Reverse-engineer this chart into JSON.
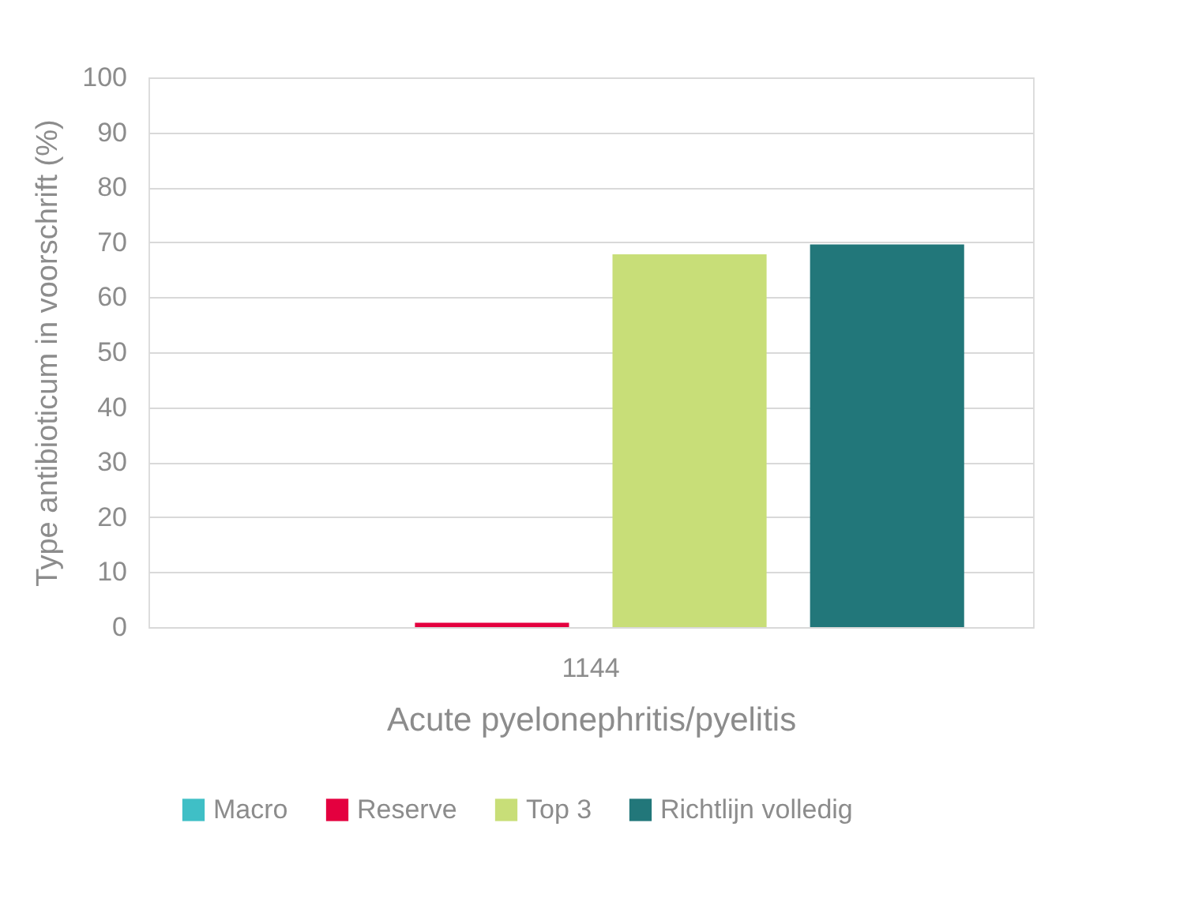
{
  "chart_data": {
    "type": "bar",
    "categories": [
      "1144"
    ],
    "xlabel": "Acute pyelonephritis/pyelitis",
    "ylabel": "Type antibioticum in voorschrift (%)",
    "series": [
      {
        "name": "Macro",
        "color": "#3fbfc6",
        "values": [
          0
        ]
      },
      {
        "name": "Reserve",
        "color": "#e4003f",
        "values": [
          0.8
        ]
      },
      {
        "name": "Top 3",
        "color": "#c8de78",
        "values": [
          67.8
        ]
      },
      {
        "name": "Richtlijn volledig",
        "color": "#22777a",
        "values": [
          69.6
        ]
      }
    ],
    "ylim": [
      0,
      100
    ],
    "yticks": [
      0,
      10,
      20,
      30,
      40,
      50,
      60,
      70,
      80,
      90,
      100
    ],
    "grid": "y",
    "legend": "bottom"
  }
}
